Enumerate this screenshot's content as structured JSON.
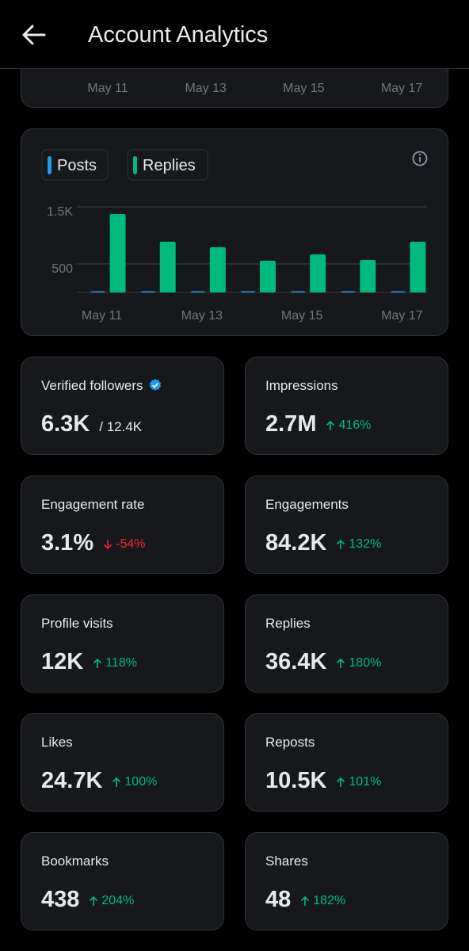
{
  "header": {
    "title": "Account Analytics"
  },
  "top_chart": {
    "x_labels": [
      "May 11",
      "May 13",
      "May 15",
      "May 17"
    ]
  },
  "chart_data": {
    "type": "bar",
    "categories": [
      "May 11",
      null,
      "May 13",
      null,
      "May 15",
      null,
      "May 17"
    ],
    "series": [
      {
        "name": "Posts",
        "color": "#1d9bf0",
        "values": [
          20,
          20,
          20,
          20,
          20,
          20,
          20
        ]
      },
      {
        "name": "Replies",
        "color": "#00ba7c",
        "values": [
          1375,
          889,
          792,
          556,
          667,
          569,
          889
        ]
      }
    ],
    "ylim": [
      0,
      1500
    ],
    "yticks": [
      {
        "value": 1500,
        "label": "1.5K"
      },
      500
    ],
    "grid": true
  },
  "stats": [
    {
      "label": "Verified followers",
      "value": "6.3K",
      "total": "/ 12.4K",
      "verified": true
    },
    {
      "label": "Impressions",
      "value": "2.7M",
      "change": "416%",
      "trend": "up"
    },
    {
      "label": "Engagement rate",
      "value": "3.1%",
      "change": "-54%",
      "trend": "down"
    },
    {
      "label": "Engagements",
      "value": "84.2K",
      "change": "132%",
      "trend": "up"
    },
    {
      "label": "Profile visits",
      "value": "12K",
      "change": "118%",
      "trend": "up"
    },
    {
      "label": "Replies",
      "value": "36.4K",
      "change": "180%",
      "trend": "up"
    },
    {
      "label": "Likes",
      "value": "24.7K",
      "change": "100%",
      "trend": "up"
    },
    {
      "label": "Reposts",
      "value": "10.5K",
      "change": "101%",
      "trend": "up"
    },
    {
      "label": "Bookmarks",
      "value": "438",
      "change": "204%",
      "trend": "up"
    },
    {
      "label": "Shares",
      "value": "48",
      "change": "182%",
      "trend": "up"
    }
  ]
}
